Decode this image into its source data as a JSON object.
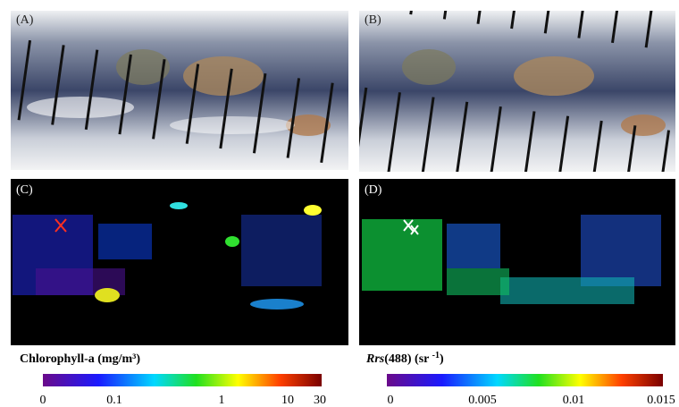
{
  "panels": [
    {
      "label": "(A)"
    },
    {
      "label": "(B)"
    },
    {
      "label": "(C)"
    },
    {
      "label": "(D)"
    }
  ],
  "colorbars": [
    {
      "title": "Chlorophyll-a (mg/m³)",
      "ticks": [
        "0",
        "0.1",
        "1",
        "10",
        "30"
      ]
    },
    {
      "title_parts": [
        "Rrs",
        "(488) (sr ",
        "-1",
        ")"
      ],
      "ticks": [
        "0",
        "0.005",
        "0.01",
        "0.015"
      ]
    }
  ]
}
